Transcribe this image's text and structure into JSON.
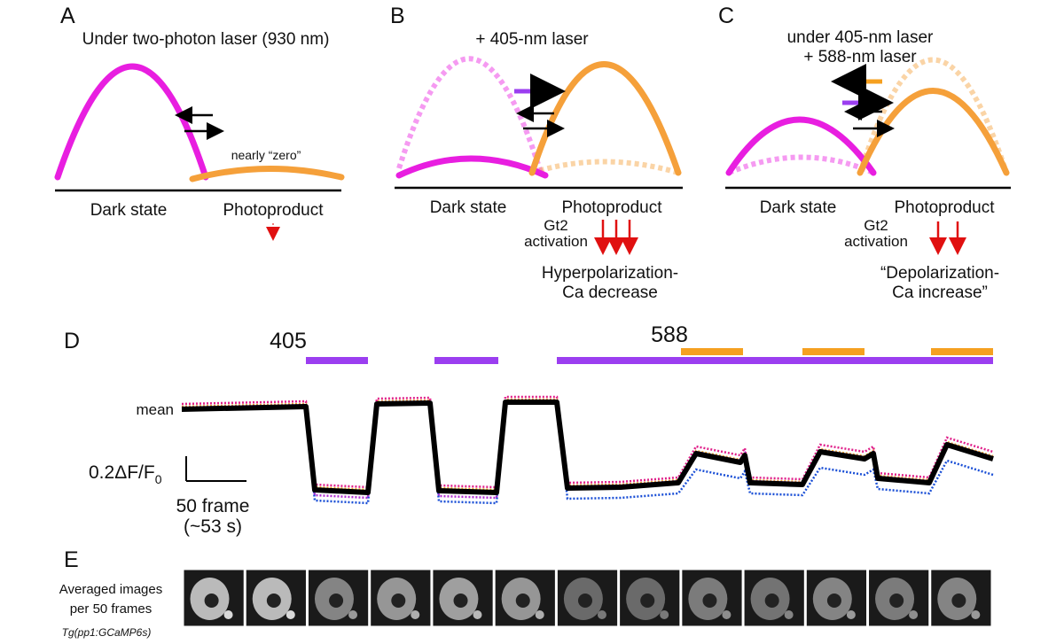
{
  "panel_a": {
    "letter": "A",
    "title": "Under two-photon laser (930 nm)",
    "note": "nearly “zero”",
    "left_label": "Dark state",
    "right_label": "Photoproduct"
  },
  "panel_b": {
    "letter": "B",
    "title": "+ 405-nm laser",
    "left_label": "Dark state",
    "right_label": "Photoproduct",
    "gt2": "Gt2",
    "activation": "activation",
    "effect_line1": "Hyperpolarization-",
    "effect_line2": "Ca decrease"
  },
  "panel_c": {
    "letter": "C",
    "title_line1": "under 405-nm laser",
    "title_line2": "+ 588-nm laser",
    "left_label": "Dark state",
    "right_label": "Photoproduct",
    "gt2": "Gt2",
    "activation": "activation",
    "effect_line1": "“Depolarization-",
    "effect_line2": "Ca increase”"
  },
  "panel_d": {
    "letter": "D",
    "laser_405": "405",
    "laser_588": "588",
    "mean_label": "mean",
    "scale_y_label": "0.2ΔF/F",
    "scale_y_sub": "0",
    "scale_x_line1": "50 frame",
    "scale_x_line2": "(~53 s)"
  },
  "panel_e": {
    "letter": "E",
    "label_line1": "Averaged images",
    "label_line2": "per 50 frames",
    "genotype": "Tg(pp1:GCaMP6s)"
  }
}
